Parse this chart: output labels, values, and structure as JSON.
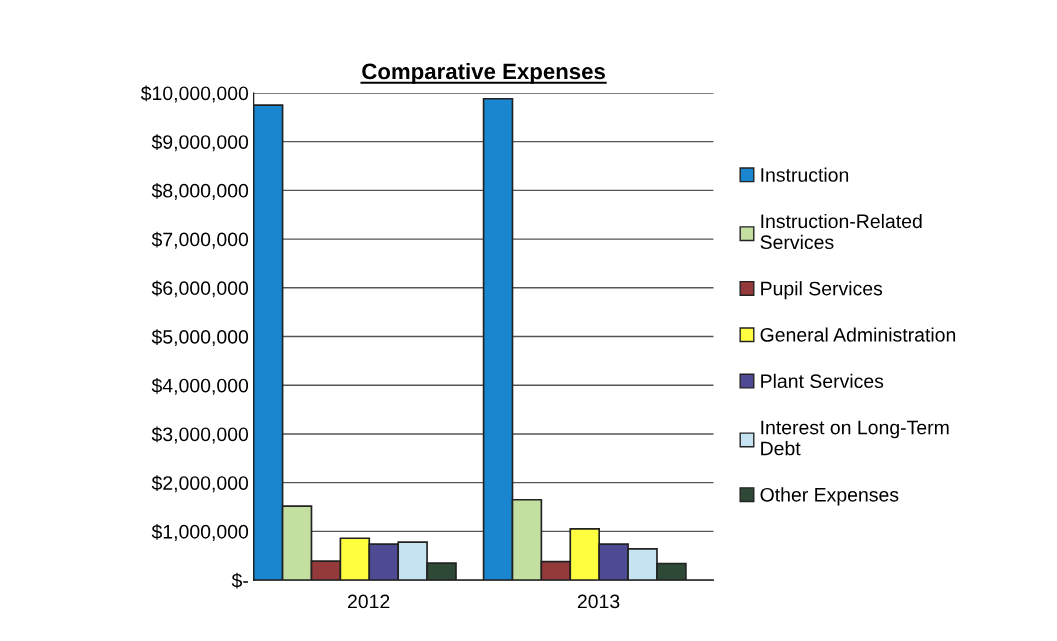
{
  "chart_data": {
    "type": "bar",
    "title": "Comparative Expenses",
    "categories": [
      "2012",
      "2013"
    ],
    "series": [
      {
        "name": "Instruction",
        "color": "#1a86d0",
        "values": [
          9750000,
          9880000
        ]
      },
      {
        "name": "Instruction-Related\nServices",
        "color": "#c3e0a0",
        "values": [
          1520000,
          1650000
        ]
      },
      {
        "name": "Pupil Services",
        "color": "#943a3a",
        "values": [
          390000,
          380000
        ]
      },
      {
        "name": "General Administration",
        "color": "#ffff40",
        "values": [
          860000,
          1050000
        ]
      },
      {
        "name": "Plant Services",
        "color": "#4f4a94",
        "values": [
          740000,
          740000
        ]
      },
      {
        "name": "Interest on Long-Term\nDebt",
        "color": "#c6e3f2",
        "values": [
          780000,
          640000
        ]
      },
      {
        "name": "Other Expenses",
        "color": "#2e4a36",
        "values": [
          350000,
          340000
        ]
      }
    ],
    "ylim": [
      0,
      10000000
    ],
    "yticks": [
      {
        "value": 0,
        "label": "$-"
      },
      {
        "value": 1000000,
        "label": "$1,000,000"
      },
      {
        "value": 2000000,
        "label": "$2,000,000"
      },
      {
        "value": 3000000,
        "label": "$3,000,000"
      },
      {
        "value": 4000000,
        "label": "$4,000,000"
      },
      {
        "value": 5000000,
        "label": "$5,000,000"
      },
      {
        "value": 6000000,
        "label": "$6,000,000"
      },
      {
        "value": 7000000,
        "label": "$7,000,000"
      },
      {
        "value": 8000000,
        "label": "$8,000,000"
      },
      {
        "value": 9000000,
        "label": "$9,000,000"
      },
      {
        "value": 10000000,
        "label": "$10,000,000"
      }
    ],
    "grid": "y",
    "legend": "right"
  }
}
